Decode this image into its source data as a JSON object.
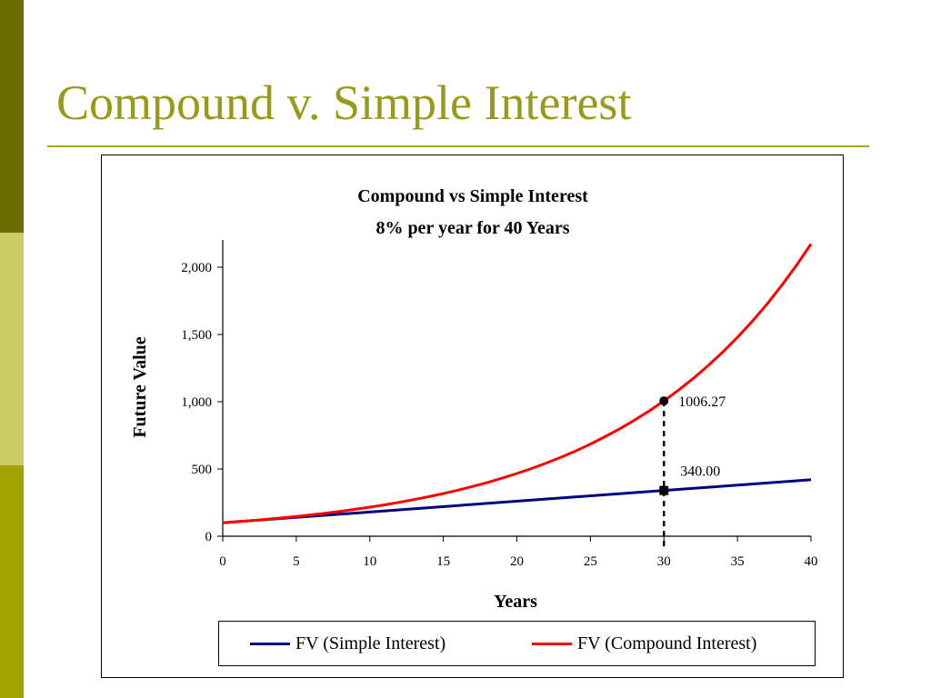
{
  "slide": {
    "title": "Compound v. Simple Interest",
    "accent_colors": [
      "#6b6b00",
      "#cdcd66",
      "#a3a300"
    ],
    "title_color": "#9a9a1a"
  },
  "chart_data": {
    "type": "line",
    "title": "Compound vs Simple Interest",
    "subtitle": "8% per year for 40 Years",
    "xlabel": "Years",
    "ylabel": "Future Value",
    "xlim": [
      0,
      40
    ],
    "ylim": [
      0,
      2200
    ],
    "x_ticks": [
      0,
      5,
      10,
      15,
      20,
      25,
      30,
      35,
      40
    ],
    "y_ticks": [
      0,
      500,
      1000,
      1500,
      2000
    ],
    "y_tick_labels": [
      "0",
      "500",
      "1,000",
      "1,500",
      "2,000"
    ],
    "grid": false,
    "legend_position": "bottom",
    "series": [
      {
        "name": "FV (Simple Interest)",
        "color": "#000080",
        "x": [
          0,
          40
        ],
        "y": [
          100,
          420
        ]
      },
      {
        "name": "FV (Compound Interest)",
        "color": "#ff0000",
        "x": [
          0,
          1,
          2,
          3,
          4,
          5,
          6,
          7,
          8,
          9,
          10,
          11,
          12,
          13,
          14,
          15,
          16,
          17,
          18,
          19,
          20,
          21,
          22,
          23,
          24,
          25,
          26,
          27,
          28,
          29,
          30,
          31,
          32,
          33,
          34,
          35,
          36,
          37,
          38,
          39,
          40
        ],
        "y": [
          100,
          108,
          116.64,
          125.97,
          136.05,
          146.93,
          158.69,
          171.38,
          185.09,
          199.9,
          215.89,
          233.16,
          251.82,
          271.96,
          293.72,
          317.22,
          342.59,
          370,
          399.6,
          431.57,
          466.1,
          503.38,
          543.65,
          587.14,
          634.12,
          684.85,
          739.63,
          798.8,
          862.71,
          931.73,
          1006.27,
          1086.77,
          1173.71,
          1267.6,
          1369.01,
          1478.53,
          1596.81,
          1724.56,
          1862.52,
          2011.52,
          2172.45
        ]
      }
    ],
    "annotations": [
      {
        "x": 30,
        "y": 1006.27,
        "text": "1006.27"
      },
      {
        "x": 30,
        "y": 340,
        "text": "340.00"
      }
    ]
  }
}
